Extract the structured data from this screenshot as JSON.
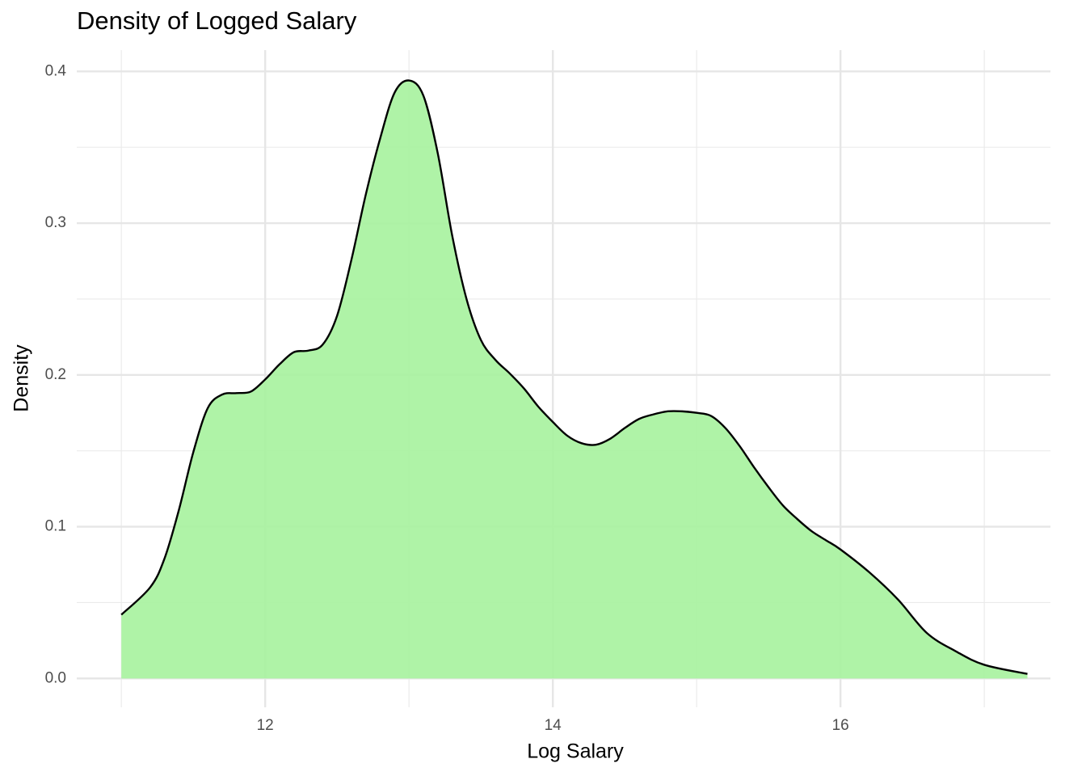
{
  "chart_data": {
    "type": "area",
    "title": "Density of Logged Salary",
    "xlabel": "Log Salary",
    "ylabel": "Density",
    "x": [
      11.0,
      11.2,
      11.3,
      11.4,
      11.5,
      11.6,
      11.7,
      11.8,
      11.9,
      12.0,
      12.1,
      12.2,
      12.3,
      12.4,
      12.5,
      12.6,
      12.7,
      12.8,
      12.9,
      13.0,
      13.1,
      13.2,
      13.3,
      13.4,
      13.5,
      13.6,
      13.7,
      13.8,
      13.9,
      14.0,
      14.1,
      14.2,
      14.3,
      14.4,
      14.5,
      14.6,
      14.7,
      14.8,
      14.9,
      15.0,
      15.1,
      15.2,
      15.3,
      15.4,
      15.5,
      15.6,
      15.7,
      15.8,
      15.9,
      16.0,
      16.2,
      16.4,
      16.6,
      16.8,
      17.0,
      17.3
    ],
    "values": [
      0.042,
      0.06,
      0.079,
      0.111,
      0.149,
      0.178,
      0.187,
      0.188,
      0.189,
      0.197,
      0.207,
      0.215,
      0.216,
      0.22,
      0.239,
      0.276,
      0.319,
      0.356,
      0.386,
      0.394,
      0.384,
      0.346,
      0.292,
      0.25,
      0.223,
      0.21,
      0.201,
      0.191,
      0.179,
      0.169,
      0.16,
      0.155,
      0.154,
      0.158,
      0.165,
      0.171,
      0.174,
      0.176,
      0.176,
      0.175,
      0.173,
      0.165,
      0.153,
      0.139,
      0.126,
      0.114,
      0.105,
      0.097,
      0.091,
      0.085,
      0.07,
      0.052,
      0.03,
      0.018,
      0.009,
      0.003
    ],
    "color": "#a8f2a0",
    "line_color": "#000000",
    "xlim": [
      10.69,
      17.46
    ],
    "xticks": [
      12,
      14,
      16
    ],
    "x_minor_ticks": [
      11,
      13,
      15,
      17
    ],
    "ylim": [
      -0.019,
      0.414
    ],
    "yticks": [
      {
        "value": 0,
        "label": "0.0"
      },
      0.1,
      0.2,
      0.3,
      0.4
    ],
    "y_minor_ticks": [
      0.05,
      0.15,
      0.25,
      0.35
    ],
    "grid": true
  }
}
